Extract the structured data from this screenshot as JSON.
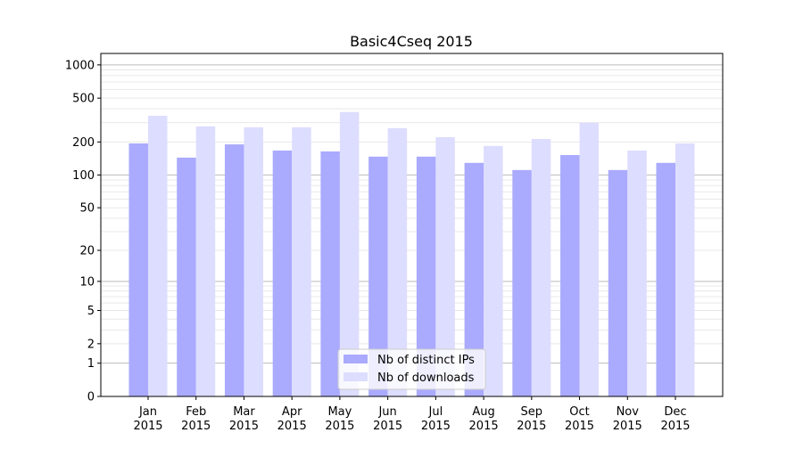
{
  "chart_data": {
    "type": "bar",
    "title": "Basic4Cseq 2015",
    "xlabel": "",
    "ylabel": "",
    "yscale": "log(y+1)",
    "ylim": [
      0,
      1270
    ],
    "yticks": [
      0,
      1,
      2,
      5,
      10,
      20,
      50,
      100,
      200,
      500,
      1000
    ],
    "grid": true,
    "legend_position": "bottom-center",
    "categories": [
      "Jan\n2015",
      "Feb\n2015",
      "Mar\n2015",
      "Apr\n2015",
      "May\n2015",
      "Jun\n2015",
      "Jul\n2015",
      "Aug\n2015",
      "Sep\n2015",
      "Oct\n2015",
      "Nov\n2015",
      "Dec\n2015"
    ],
    "series": [
      {
        "name": "Nb of distinct IPs",
        "color": "#aaaaff",
        "values": [
          194,
          144,
          190,
          167,
          164,
          147,
          147,
          129,
          111,
          152,
          111,
          129
        ]
      },
      {
        "name": "Nb of downloads",
        "color": "#ddddff",
        "values": [
          346,
          277,
          272,
          272,
          374,
          267,
          221,
          184,
          213,
          298,
          167,
          194
        ]
      }
    ]
  }
}
